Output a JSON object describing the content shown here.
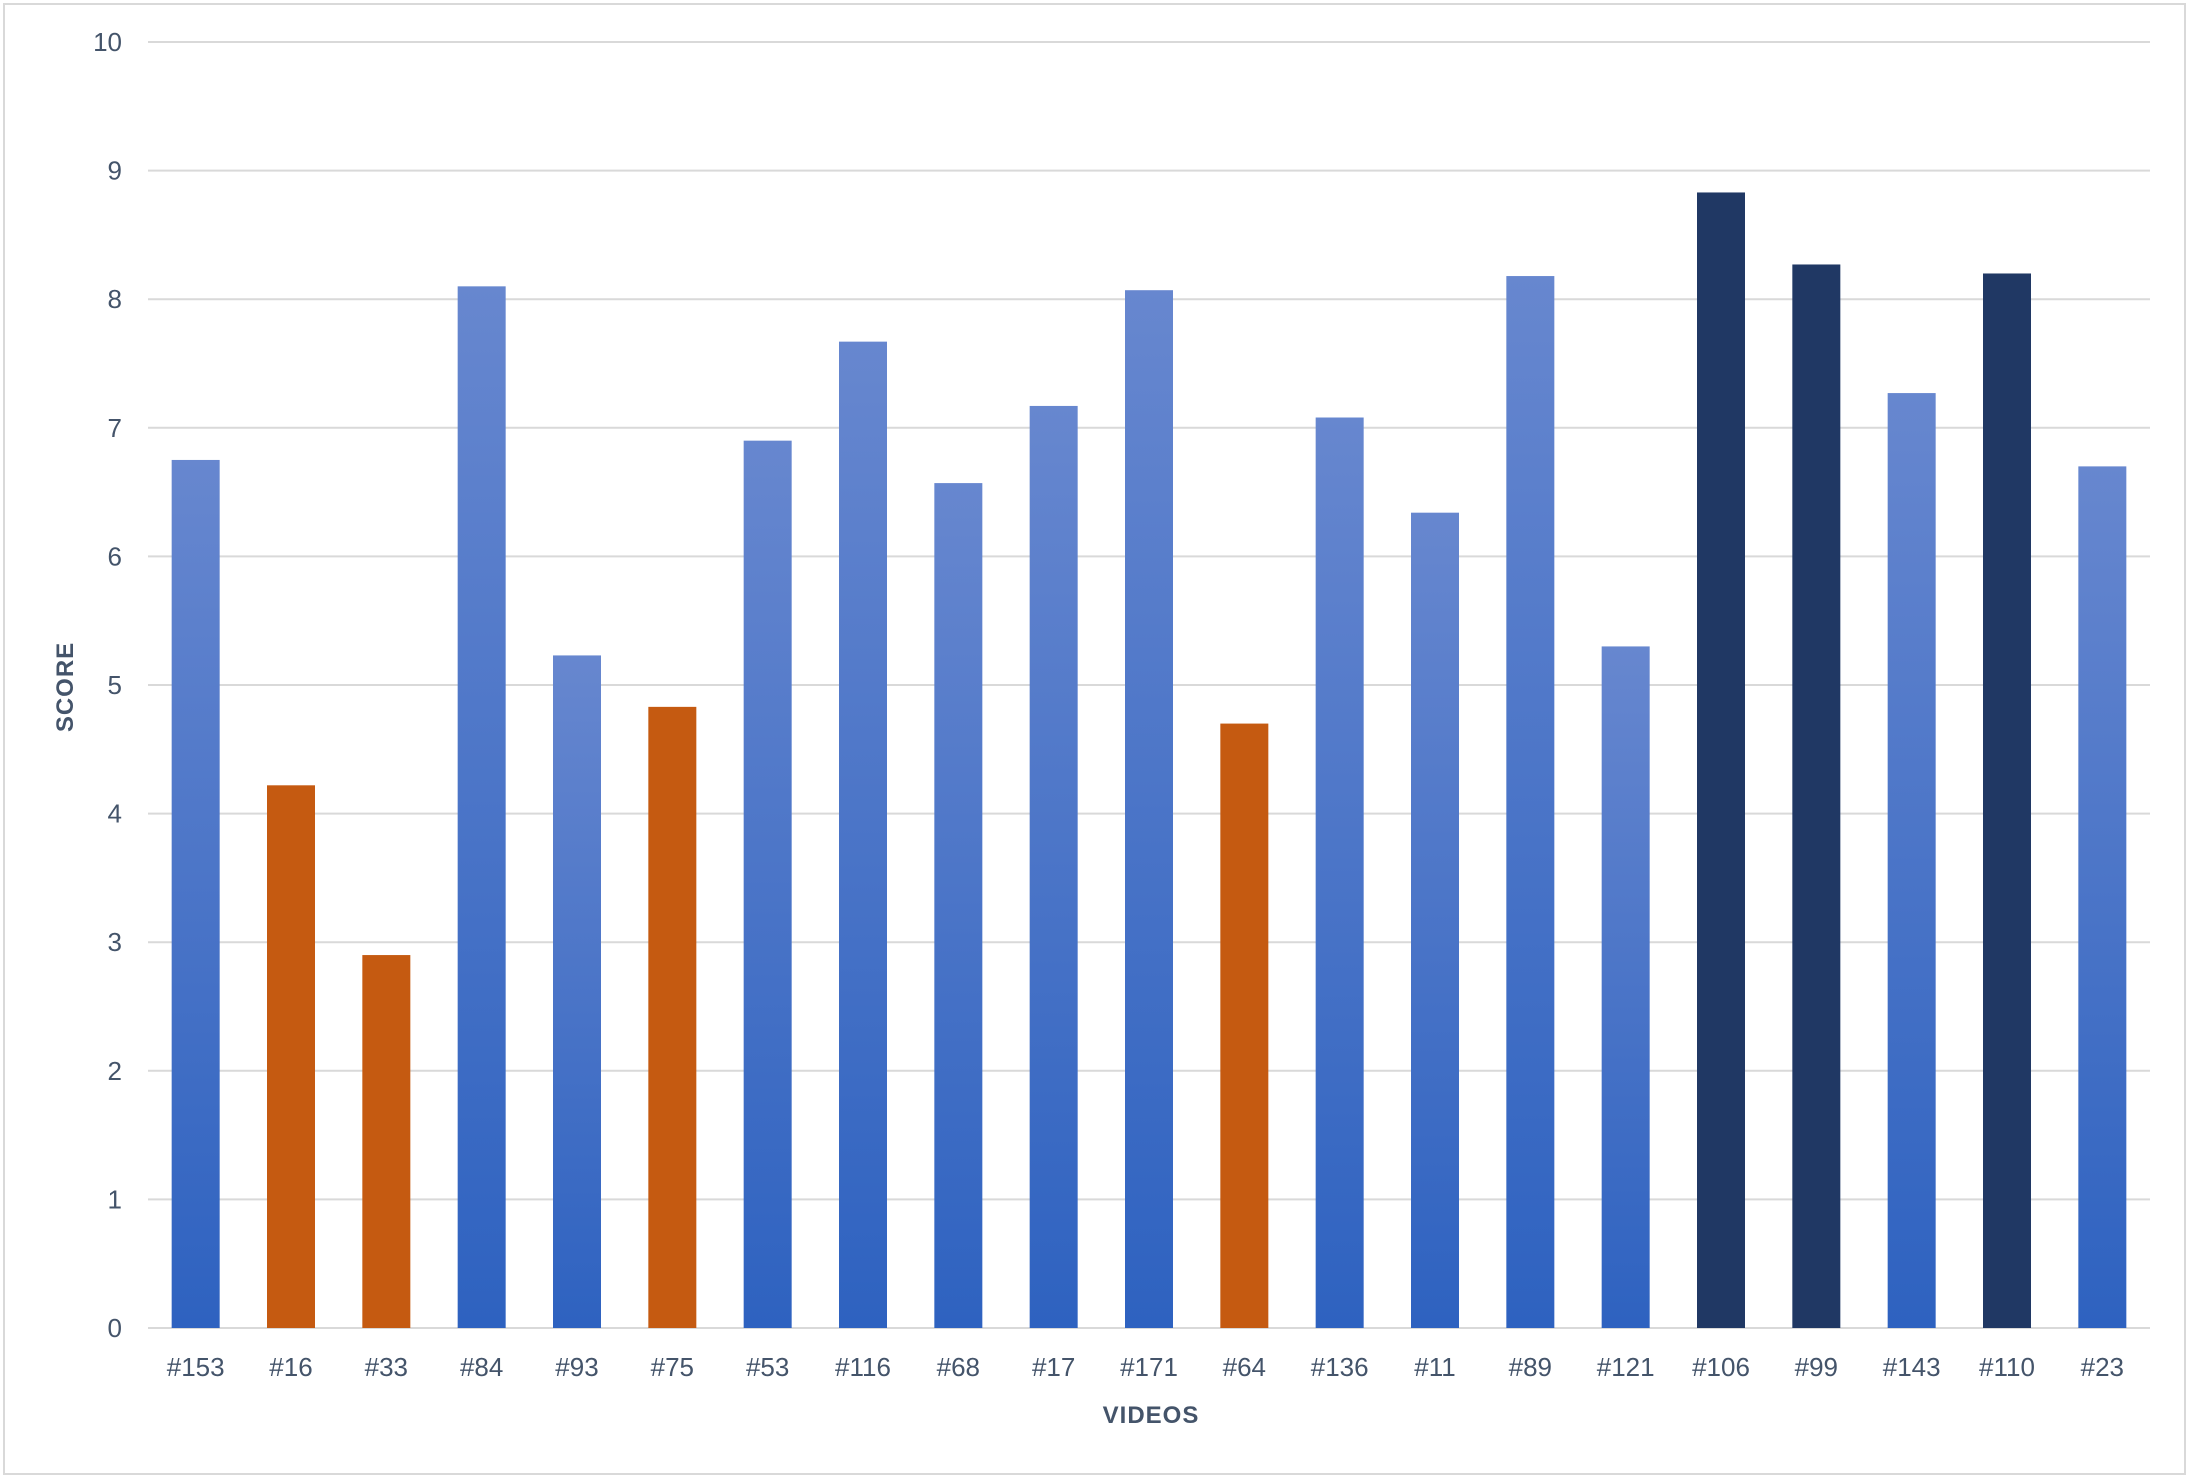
{
  "chart_data": {
    "type": "bar",
    "xlabel": "VIDEOS",
    "ylabel": "SCORE",
    "ylim": [
      0,
      10
    ],
    "yticks": [
      0,
      1,
      2,
      3,
      4,
      5,
      6,
      7,
      8,
      9,
      10
    ],
    "grid": true,
    "legend": "none",
    "categories": [
      "#153",
      "#16",
      "#33",
      "#84",
      "#93",
      "#75",
      "#53",
      "#116",
      "#68",
      "#17",
      "#171",
      "#64",
      "#136",
      "#11",
      "#89",
      "#121",
      "#106",
      "#99",
      "#143",
      "#110",
      "#23"
    ],
    "values": [
      6.75,
      4.22,
      2.9,
      8.1,
      5.23,
      4.83,
      6.9,
      7.67,
      6.57,
      7.17,
      8.07,
      4.7,
      7.08,
      6.34,
      8.18,
      5.3,
      8.83,
      8.27,
      7.27,
      8.2,
      6.7
    ],
    "bar_groups": [
      "mid",
      "low",
      "low",
      "mid",
      "mid",
      "low",
      "mid",
      "mid",
      "mid",
      "mid",
      "mid",
      "low",
      "mid",
      "mid",
      "mid",
      "mid",
      "high",
      "high",
      "mid",
      "high",
      "mid"
    ],
    "colors": {
      "mid_top": "#6787cf",
      "mid_bottom": "#2e62c0",
      "low": "#c55a11",
      "high": "#203864",
      "grid": "#d9d9d9",
      "text": "#44546a"
    }
  }
}
